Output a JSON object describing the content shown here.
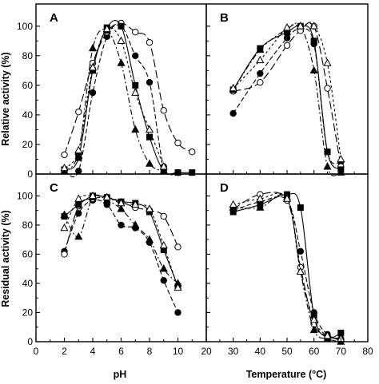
{
  "figure": {
    "ylabel_top": "Relative activity (%)",
    "ylabel_bottom": "Residual activity (%)",
    "xlabel_left": "pH",
    "xlabel_right": "Temperature (°C)"
  },
  "chart_data": [
    {
      "panel": "A",
      "type": "line",
      "x_axis": "pH",
      "xlim": [
        0,
        12
      ],
      "ylim": [
        0,
        115
      ],
      "y_ticks": [
        "0",
        "20",
        "40",
        "60",
        "80",
        "100"
      ],
      "grid": false,
      "series": [
        {
          "marker": "filled-circle",
          "dash": "dashed",
          "points": [
            [
              2,
              2
            ],
            [
              3,
              2
            ],
            [
              4,
              55
            ],
            [
              5,
              93
            ],
            [
              6,
              100
            ],
            [
              7,
              80
            ],
            [
              8,
              62
            ],
            [
              9,
              5
            ],
            [
              10,
              1
            ]
          ]
        },
        {
          "marker": "open-circle",
          "dash": "long-dashed",
          "points": [
            [
              2,
              13
            ],
            [
              3,
              42
            ],
            [
              4,
              75
            ],
            [
              5,
              96
            ],
            [
              6,
              102
            ],
            [
              7,
              96
            ],
            [
              8,
              89
            ],
            [
              9,
              43
            ],
            [
              10,
              21
            ],
            [
              11,
              15
            ]
          ]
        },
        {
          "marker": "filled-square",
          "dash": "solid",
          "points": [
            [
              2,
              3
            ],
            [
              3,
              11
            ],
            [
              4,
              70
            ],
            [
              5,
              99
            ],
            [
              6,
              100
            ],
            [
              7,
              60
            ],
            [
              8,
              25
            ],
            [
              9,
              2
            ],
            [
              10,
              1
            ],
            [
              11,
              1
            ]
          ]
        },
        {
          "marker": "filled-triangle",
          "dash": "dash-dot",
          "points": [
            [
              2,
              2
            ],
            [
              3,
              15
            ],
            [
              4,
              85
            ],
            [
              5,
              97
            ],
            [
              6,
              75
            ],
            [
              7,
              30
            ],
            [
              8,
              7
            ],
            [
              9,
              2
            ]
          ]
        },
        {
          "marker": "open-triangle",
          "dash": "short-dashed",
          "points": [
            [
              2,
              4
            ],
            [
              3,
              16
            ],
            [
              4,
              72
            ],
            [
              5,
              98
            ],
            [
              6,
              90
            ],
            [
              7,
              55
            ],
            [
              8,
              30
            ],
            [
              9,
              5
            ]
          ]
        }
      ]
    },
    {
      "panel": "B",
      "type": "line",
      "x_axis": "Temperature (°C)",
      "xlim": [
        20,
        80
      ],
      "ylim": [
        0,
        115
      ],
      "grid": false,
      "series": [
        {
          "marker": "filled-circle",
          "dash": "dashed",
          "points": [
            [
              30,
              41
            ],
            [
              40,
              68
            ],
            [
              50,
              92
            ],
            [
              55,
              98
            ],
            [
              60,
              88
            ],
            [
              65,
              15
            ],
            [
              70,
              8
            ]
          ]
        },
        {
          "marker": "open-circle",
          "dash": "long-dashed",
          "points": [
            [
              30,
              56
            ],
            [
              40,
              62
            ],
            [
              50,
              87
            ],
            [
              55,
              97
            ],
            [
              60,
              100
            ],
            [
              65,
              58
            ],
            [
              70,
              5
            ]
          ]
        },
        {
          "marker": "filled-square",
          "dash": "solid",
          "points": [
            [
              30,
              57
            ],
            [
              40,
              85
            ],
            [
              50,
              96
            ],
            [
              55,
              100
            ],
            [
              60,
              90
            ],
            [
              65,
              15
            ],
            [
              70,
              3
            ]
          ]
        },
        {
          "marker": "filled-triangle",
          "dash": "dash-dot",
          "points": [
            [
              30,
              57
            ],
            [
              40,
              84
            ],
            [
              50,
              98
            ],
            [
              55,
              100
            ],
            [
              60,
              70
            ],
            [
              65,
              5
            ],
            [
              70,
              1
            ]
          ]
        },
        {
          "marker": "open-triangle",
          "dash": "short-dashed",
          "points": [
            [
              30,
              58
            ],
            [
              40,
              77
            ],
            [
              50,
              99
            ],
            [
              55,
              100
            ],
            [
              60,
              100
            ],
            [
              65,
              75
            ],
            [
              70,
              10
            ]
          ]
        }
      ]
    },
    {
      "panel": "C",
      "type": "line",
      "x_axis": "pH",
      "xlim": [
        0,
        12
      ],
      "ylim": [
        0,
        115
      ],
      "x_ticks": [
        "0",
        "2",
        "4",
        "6",
        "8",
        "10"
      ],
      "y_ticks": [
        "0",
        "20",
        "40",
        "60",
        "80",
        "100"
      ],
      "grid": false,
      "series": [
        {
          "marker": "filled-circle",
          "dash": "dashed",
          "points": [
            [
              2,
              62
            ],
            [
              3,
              88
            ],
            [
              4,
              97
            ],
            [
              5,
              94
            ],
            [
              6,
              80
            ],
            [
              7,
              78
            ],
            [
              8,
              68
            ],
            [
              9,
              42
            ],
            [
              10,
              20
            ]
          ]
        },
        {
          "marker": "open-circle",
          "dash": "long-dashed",
          "points": [
            [
              2,
              60
            ],
            [
              3,
              93
            ],
            [
              4,
              98
            ],
            [
              5,
              99
            ],
            [
              6,
              96
            ],
            [
              7,
              92
            ],
            [
              8,
              90
            ],
            [
              9,
              86
            ],
            [
              10,
              65
            ]
          ]
        },
        {
          "marker": "filled-square",
          "dash": "solid",
          "points": [
            [
              2,
              86
            ],
            [
              3,
              94
            ],
            [
              4,
              100
            ],
            [
              5,
              99
            ],
            [
              6,
              96
            ],
            [
              7,
              95
            ],
            [
              8,
              89
            ],
            [
              9,
              63
            ],
            [
              10,
              38
            ]
          ]
        },
        {
          "marker": "filled-triangle",
          "dash": "dash-dot",
          "points": [
            [
              2,
              87
            ],
            [
              3,
              72
            ],
            [
              4,
              99
            ],
            [
              5,
              97
            ],
            [
              6,
              91
            ],
            [
              7,
              80
            ],
            [
              8,
              70
            ],
            [
              9,
              50
            ],
            [
              10,
              40
            ]
          ]
        },
        {
          "marker": "open-triangle",
          "dash": "short-dashed",
          "points": [
            [
              2,
              78
            ],
            [
              3,
              98
            ],
            [
              4,
              100
            ],
            [
              5,
              99
            ],
            [
              6,
              95
            ],
            [
              7,
              94
            ],
            [
              8,
              91
            ],
            [
              9,
              66
            ],
            [
              10,
              37
            ]
          ]
        }
      ]
    },
    {
      "panel": "D",
      "type": "line",
      "x_axis": "Temperature (°C)",
      "xlim": [
        20,
        80
      ],
      "ylim": [
        0,
        115
      ],
      "x_ticks": [
        "20",
        "30",
        "40",
        "50",
        "60",
        "70",
        "80"
      ],
      "grid": false,
      "series": [
        {
          "marker": "filled-circle",
          "dash": "dashed",
          "points": [
            [
              30,
              90
            ],
            [
              40,
              96
            ],
            [
              50,
              97
            ],
            [
              55,
              62
            ],
            [
              60,
              20
            ],
            [
              65,
              5
            ],
            [
              70,
              2
            ]
          ]
        },
        {
          "marker": "open-circle",
          "dash": "long-dashed",
          "points": [
            [
              30,
              91
            ],
            [
              40,
              101
            ],
            [
              50,
              97
            ],
            [
              55,
              51
            ],
            [
              60,
              12
            ],
            [
              65,
              4
            ],
            [
              70,
              1
            ]
          ]
        },
        {
          "marker": "filled-square",
          "dash": "solid",
          "points": [
            [
              30,
              89
            ],
            [
              40,
              94
            ],
            [
              50,
              101
            ],
            [
              55,
              92
            ],
            [
              60,
              18
            ],
            [
              65,
              3
            ],
            [
              70,
              6
            ]
          ]
        },
        {
          "marker": "filled-triangle",
          "dash": "dash-dot",
          "points": [
            [
              30,
              92
            ],
            [
              40,
              92
            ],
            [
              50,
              99
            ],
            [
              55,
              48
            ],
            [
              60,
              8
            ],
            [
              65,
              2
            ],
            [
              70,
              0
            ]
          ]
        },
        {
          "marker": "open-triangle",
          "dash": "short-dashed",
          "points": [
            [
              30,
              94
            ],
            [
              40,
              98
            ],
            [
              50,
              98
            ],
            [
              55,
              48
            ],
            [
              60,
              15
            ],
            [
              65,
              4
            ],
            [
              70,
              2
            ]
          ]
        }
      ]
    }
  ]
}
